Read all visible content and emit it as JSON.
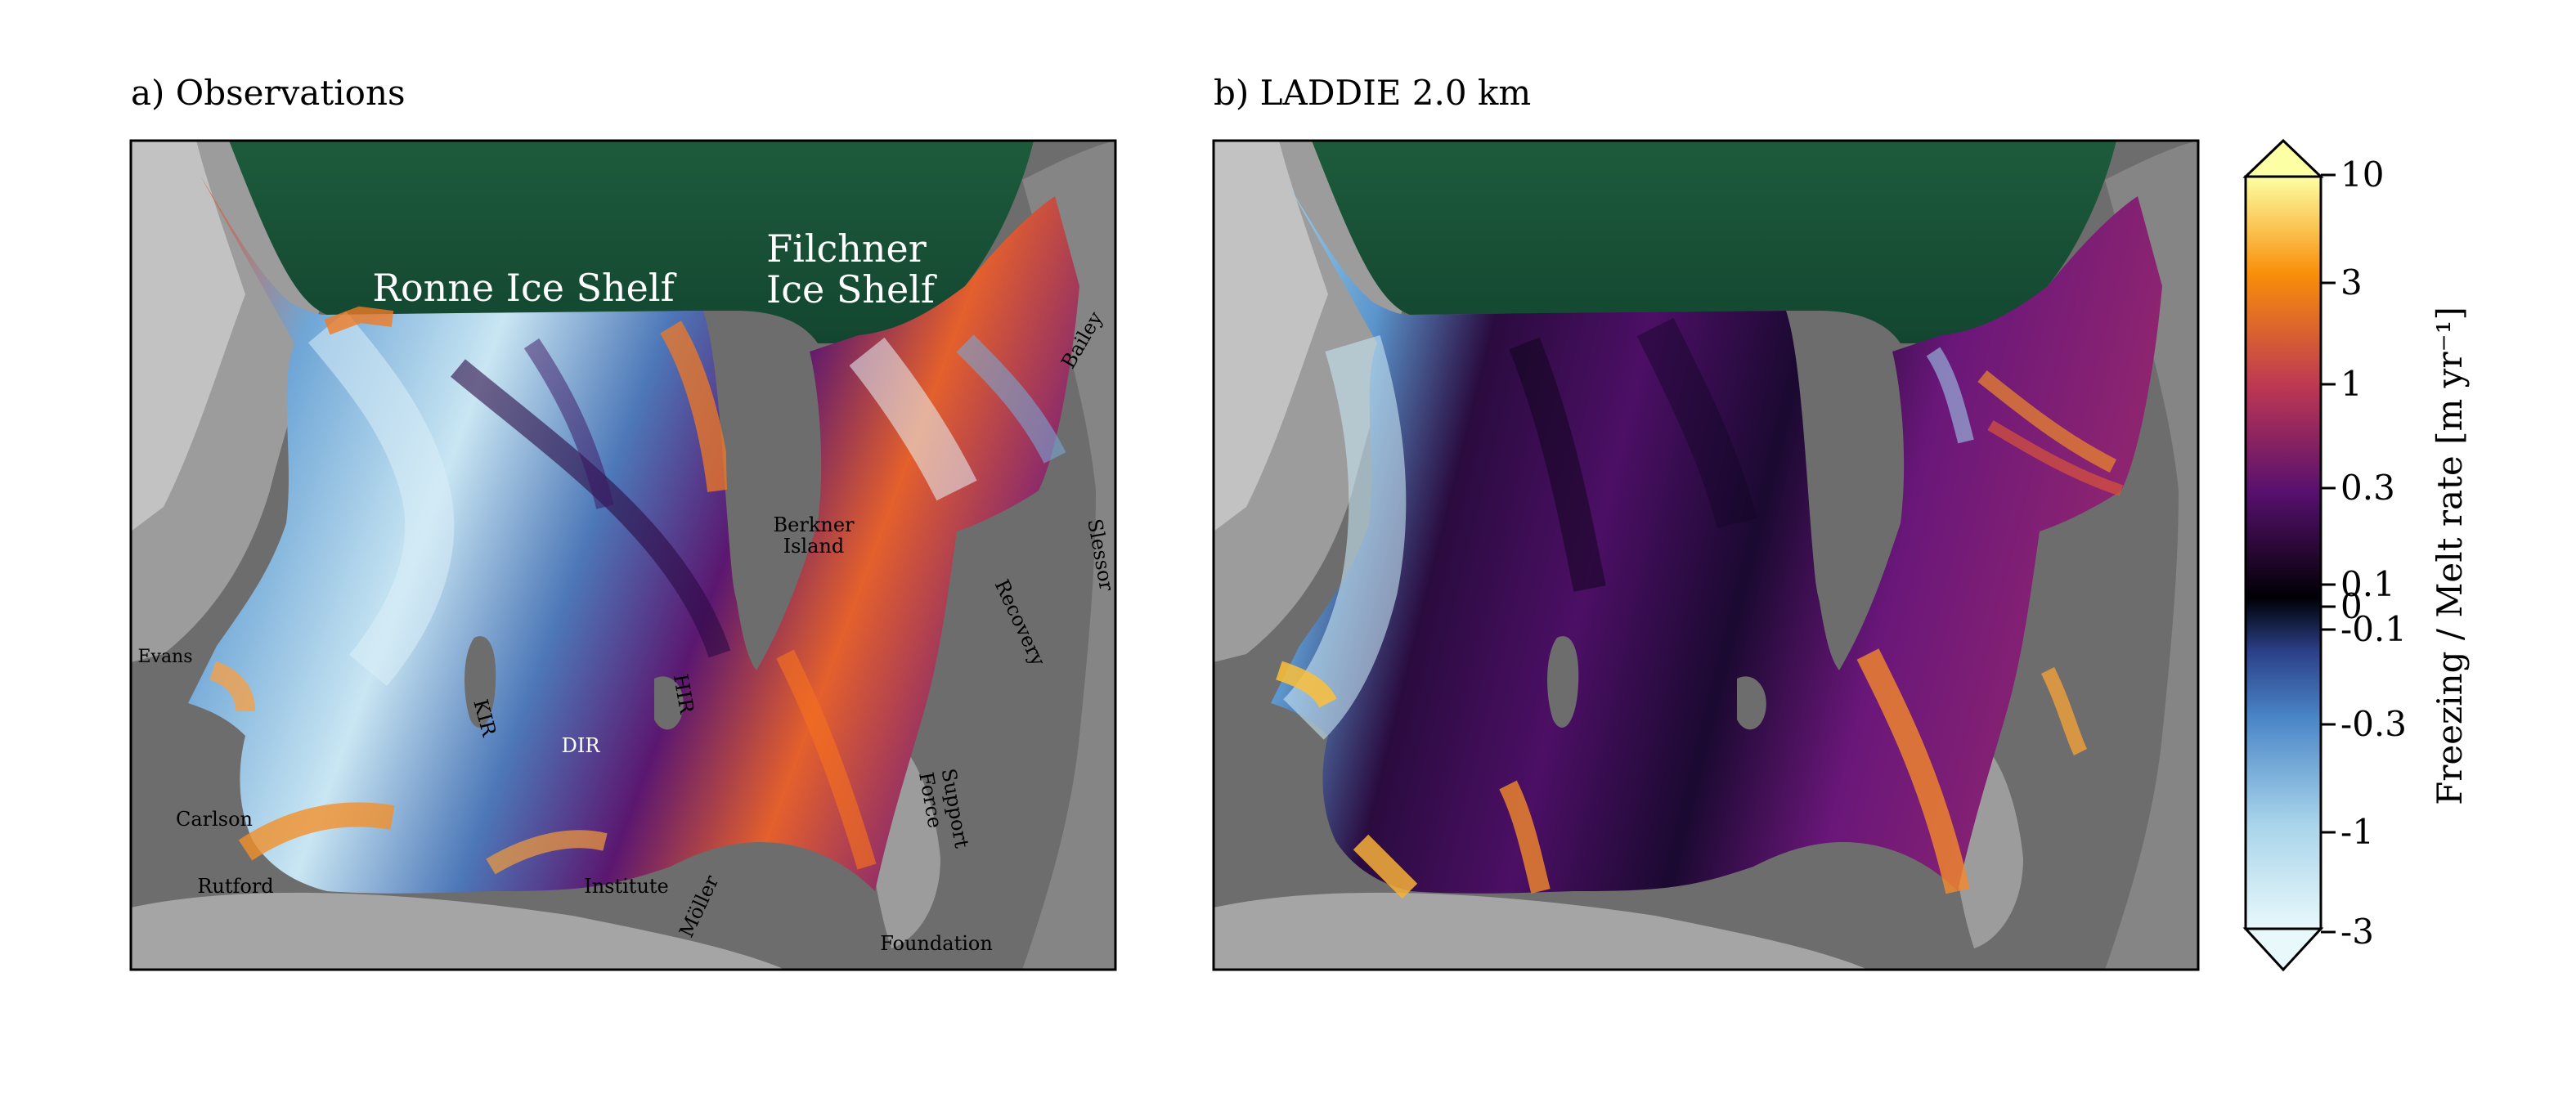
{
  "panels": [
    {
      "title": "a) Observations",
      "labels": {
        "ronne": "Ronne Ice Shelf",
        "filchner_1": "Filchner",
        "filchner_2": "Ice Shelf",
        "bailey": "Bailey",
        "berkner_1": "Berkner",
        "berkner_2": "Island",
        "slessor": "Slessor",
        "recovery": "Recovery",
        "evans": "Evans",
        "kir": "KIR",
        "hir": "HIR",
        "dir": "DIR",
        "support_1": "Support",
        "support_2": "Force",
        "carlson": "Carlson",
        "rutford": "Rutford",
        "institute": "Institute",
        "moller": "Möller",
        "foundation": "Foundation"
      }
    },
    {
      "title": "b) LADDIE 2.0 km"
    }
  ],
  "colorbar": {
    "label": "Freezing / Melt rate [m yr⁻¹]",
    "extend": "both",
    "scale": "symlog",
    "ticks": [
      "10",
      "3",
      "1",
      "0.3",
      "0.1",
      "0",
      "-0.1",
      "-0.3",
      "-1",
      "-3"
    ],
    "colors": {
      "top": "#fcffa4",
      "upper": "#f98e09",
      "mid_high": "#bc3754",
      "mid": "#57106e",
      "zero": "#000004",
      "neg_low": "#2b3f87",
      "neg_mid": "#4a86c8",
      "neg_high": "#a8d4ea",
      "bottom": "#e8f8fb"
    }
  },
  "map_colors": {
    "ocean": "#174f34",
    "grounded_ice": "#6d6d6d",
    "rock_light": "#c6c6c6"
  }
}
